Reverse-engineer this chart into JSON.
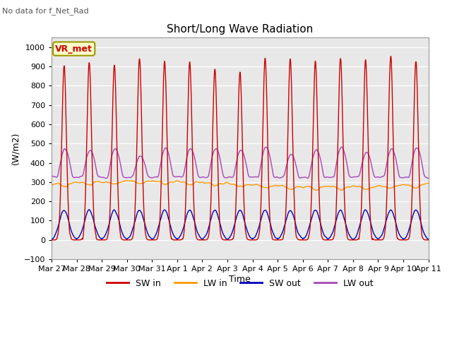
{
  "title": "Short/Long Wave Radiation",
  "subtitle": "No data for f_Net_Rad",
  "xlabel": "Time",
  "ylabel": "(W/m2)",
  "legend_label": "VR_met",
  "ylim": [
    -100,
    1050
  ],
  "xtick_labels": [
    "Mar 27",
    "Mar 28",
    "Mar 29",
    "Mar 30",
    "Mar 31",
    "Apr 1",
    "Apr 2",
    "Apr 3",
    "Apr 4",
    "Apr 5",
    "Apr 6",
    "Apr 7",
    "Apr 8",
    "Apr 9",
    "Apr 10",
    "Apr 11"
  ],
  "sw_in_color": "#cc0000",
  "lw_in_color": "#ff9900",
  "sw_out_color": "#0000bb",
  "lw_out_color": "#aa44bb",
  "bg_color": "#e8e8e8",
  "legend_bg": "#ffffcc",
  "legend_edge": "#999900",
  "n_days": 15
}
